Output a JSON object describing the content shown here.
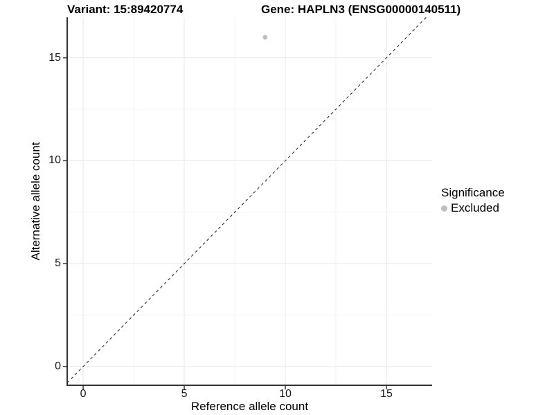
{
  "chart_data": {
    "type": "scatter",
    "title_left": "Variant: 15:89420774",
    "title_right": "Gene: HAPLN3 (ENSG00000140511)",
    "xlabel": "Reference allele count",
    "ylabel": "Alternative allele count",
    "xlim": [
      -0.79,
      17.26
    ],
    "ylim": [
      -0.91,
      16.97
    ],
    "x_ticks": [
      0,
      5,
      10,
      15
    ],
    "y_ticks": [
      0,
      5,
      10,
      15
    ],
    "x_minor_ticks": [
      2.5,
      7.5,
      12.5
    ],
    "y_minor_ticks": [
      2.5,
      7.5,
      12.5
    ],
    "grid": true,
    "points": [
      {
        "x": 9,
        "y": 16,
        "series": "Excluded"
      }
    ],
    "identity_line": {
      "slope": 1,
      "intercept": 0,
      "style": "dashed"
    },
    "legend": {
      "title": "Significance",
      "position": "right",
      "items": [
        {
          "label": "Excluded",
          "color": "#bebebe"
        }
      ]
    },
    "colors": {
      "point": "#bebebe",
      "grid_major": "#e7e7e7",
      "grid_minor": "#f3f3f3",
      "axis_line": "#333333",
      "tick_mark": "#333333",
      "identity_line": "#1a1a1a"
    }
  }
}
